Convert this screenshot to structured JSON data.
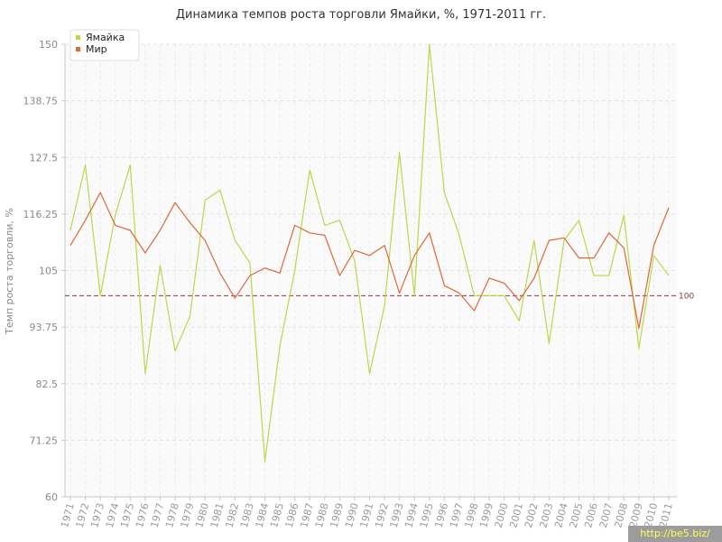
{
  "chart_data": {
    "type": "line",
    "title": "Динамика темпов роста торговли Ямайки, %, 1971-2011 гг.",
    "ylabel": "Темп роста торговли, %",
    "xlabel": "",
    "ylim": [
      60,
      150
    ],
    "yticks": [
      "150",
      "138.75",
      "127.5",
      "116.25",
      "105",
      "93.75",
      "82.5",
      "71.25",
      "60"
    ],
    "x": [
      "1971",
      "1972",
      "1973",
      "1974",
      "1975",
      "1976",
      "1977",
      "1978",
      "1979",
      "1980",
      "1981",
      "1982",
      "1983",
      "1984",
      "1985",
      "1986",
      "1987",
      "1988",
      "1989",
      "1990",
      "1991",
      "1992",
      "1993",
      "1994",
      "1995",
      "1996",
      "1997",
      "1998",
      "1999",
      "2000",
      "2001",
      "2002",
      "2003",
      "2004",
      "2005",
      "2006",
      "2007",
      "2008",
      "2009",
      "2010",
      "2011"
    ],
    "grid": true,
    "legend_position": "top-left",
    "series": [
      {
        "name": "Ямайка",
        "color": "#b9d94a",
        "values": [
          113,
          126,
          100,
          116,
          126,
          84.5,
          106,
          89,
          96,
          119,
          121,
          111,
          106.5,
          67,
          90,
          105,
          125,
          114,
          115,
          107,
          84.5,
          98,
          128.5,
          100,
          150,
          120.5,
          112,
          100,
          100,
          100,
          95,
          111,
          90.5,
          111,
          115,
          104,
          104,
          116,
          89.5,
          108,
          104
        ]
      },
      {
        "name": "Мир",
        "color": "#e0673c",
        "values": [
          110,
          115,
          120.5,
          114,
          113,
          108.5,
          113,
          118.5,
          114.5,
          111,
          104.5,
          99.5,
          104,
          105.5,
          104.5,
          114,
          112.5,
          112,
          104,
          109,
          108,
          110,
          100.5,
          108,
          112.5,
          102,
          100.5,
          97,
          103.5,
          102.5,
          99,
          103.5,
          111,
          111.5,
          107.5,
          107.5,
          112.5,
          109.5,
          93.5,
          110,
          117.5
        ]
      }
    ],
    "reference_line": {
      "value": 100,
      "label": "100",
      "color": "#8b3a3a"
    }
  },
  "watermark": "http://be5.biz/"
}
